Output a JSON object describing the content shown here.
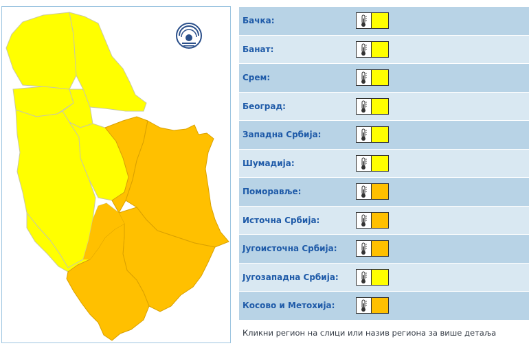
{
  "map": {
    "level_colors": {
      "yellow": "#ffff00",
      "orange": "#ffc000"
    },
    "border_color": "#c9c9a0",
    "logo_icon": "hydrometeorological-service-logo"
  },
  "regions": [
    {
      "name": "Бачка:",
      "level": "yellow",
      "icon": "thermometer-icon"
    },
    {
      "name": "Банат:",
      "level": "yellow",
      "icon": "thermometer-icon"
    },
    {
      "name": "Срем:",
      "level": "yellow",
      "icon": "thermometer-icon"
    },
    {
      "name": "Београд:",
      "level": "yellow",
      "icon": "thermometer-icon"
    },
    {
      "name": "Западна Србија:",
      "level": "yellow",
      "icon": "thermometer-icon"
    },
    {
      "name": "Шумадија:",
      "level": "yellow",
      "icon": "thermometer-icon"
    },
    {
      "name": "Поморавље:",
      "level": "orange",
      "icon": "thermometer-icon"
    },
    {
      "name": "Источна Србија:",
      "level": "orange",
      "icon": "thermometer-icon"
    },
    {
      "name": "Југоисточна Србија:",
      "level": "orange",
      "icon": "thermometer-icon"
    },
    {
      "name": "Југозападна Србија:",
      "level": "yellow",
      "icon": "thermometer-icon"
    },
    {
      "name": "Косово и Метохија:",
      "level": "orange",
      "icon": "thermometer-icon"
    }
  ],
  "footer_text": "Кликни регион на слици или назив региона за више детаља",
  "row_colors": {
    "dark": "#b8d3e6",
    "light": "#d9e8f2",
    "text": "#1e5aa8"
  }
}
